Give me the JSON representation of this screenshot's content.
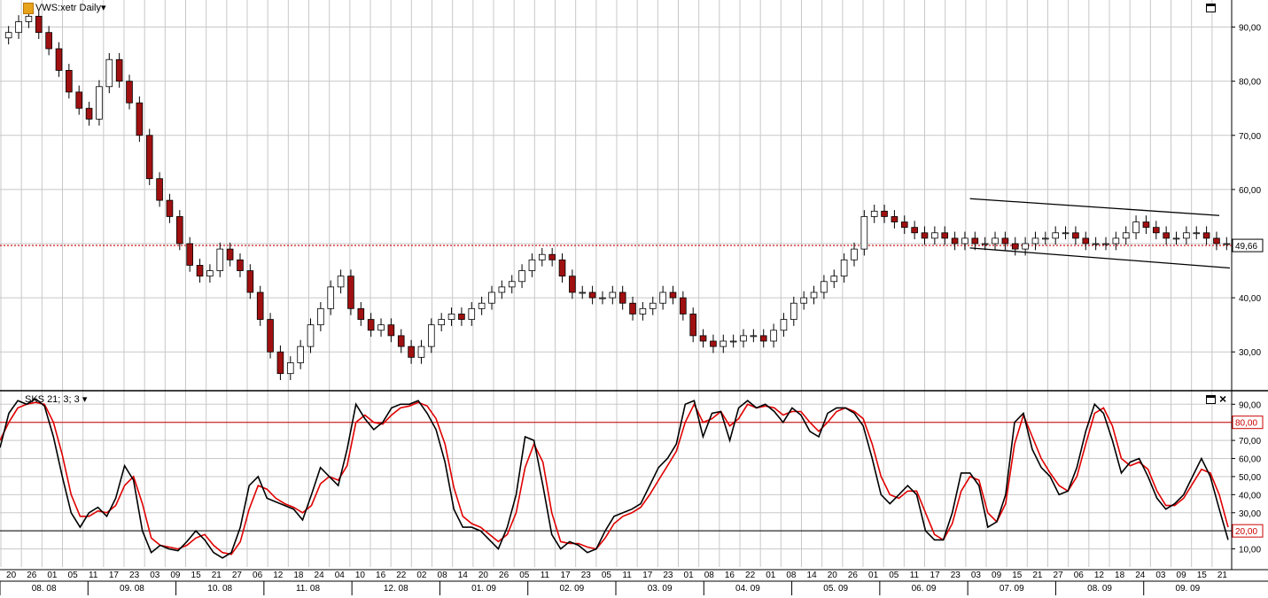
{
  "price_panel": {
    "title": "VWS:xetr Daily",
    "last_price_label": "49,66",
    "colors": {
      "up": "#ffffff",
      "down": "#a01010",
      "wick": "#000000",
      "price_line": "#cc0000",
      "grid": "#c8c8c8"
    }
  },
  "indicator_panel": {
    "title": "SKS 21; 3; 3",
    "levels": {
      "upper": "80,00",
      "lower": "20,00"
    },
    "colors": {
      "k_line": "#000000",
      "d_line": "#e00000",
      "upper_level": "#cc0000",
      "lower_level": "#000000"
    }
  },
  "time_axis": {
    "day_labels": [
      "20",
      "26",
      "01",
      "05",
      "11",
      "17",
      "23",
      "03",
      "09",
      "15",
      "21",
      "27",
      "06",
      "12",
      "18",
      "24",
      "04",
      "10",
      "16",
      "22",
      "02",
      "08",
      "14",
      "20",
      "26",
      "05",
      "11",
      "17",
      "23",
      "05",
      "11",
      "17",
      "23",
      "01",
      "08",
      "16",
      "22",
      "01",
      "08",
      "14",
      "20",
      "26",
      "01",
      "05",
      "11",
      "17",
      "23",
      "03",
      "09",
      "15",
      "21",
      "27",
      "06",
      "12",
      "18",
      "24",
      "03",
      "09",
      "15",
      "21"
    ],
    "month_labels": [
      "08. 08",
      "09. 08",
      "10. 08",
      "11. 08",
      "12. 08",
      "01. 09",
      "02. 09",
      "03. 09",
      "04. 09",
      "05. 09",
      "06. 09",
      "07. 09",
      "08. 09",
      "09. 09"
    ]
  },
  "chart_data": [
    {
      "type": "candlestick",
      "title": "VWS:xetr Daily",
      "y_ticks": [
        "90,00",
        "80,00",
        "70,00",
        "60,00",
        "50,00",
        "40,00",
        "30,00"
      ],
      "ylim": [
        23,
        95
      ],
      "grid": true,
      "last_value": 49.66,
      "series": [
        {
          "name": "close_approx",
          "values": [
            89,
            91,
            92,
            89,
            86,
            82,
            78,
            75,
            73,
            79,
            84,
            80,
            76,
            70,
            62,
            58,
            55,
            50,
            46,
            44,
            45,
            49,
            47,
            45,
            41,
            36,
            30,
            26,
            28,
            31,
            35,
            38,
            42,
            44,
            38,
            36,
            34,
            35,
            33,
            31,
            29,
            31,
            35,
            36,
            37,
            36,
            38,
            39,
            41,
            42,
            43,
            45,
            47,
            48,
            47,
            44,
            41,
            41,
            40,
            40,
            41,
            39,
            37,
            38,
            39,
            41,
            40,
            37,
            33,
            32,
            31,
            32,
            32,
            33,
            33,
            32,
            34,
            36,
            39,
            40,
            41,
            43,
            44,
            47,
            49,
            55,
            56,
            55,
            54,
            53,
            52,
            51,
            52,
            51,
            50,
            51,
            50,
            50,
            51,
            50,
            49,
            50,
            51,
            51,
            52,
            52,
            51,
            50,
            50,
            50,
            51,
            52,
            54,
            53,
            52,
            51,
            51,
            52,
            52,
            51,
            50,
            50
          ]
        }
      ]
    },
    {
      "type": "line",
      "title": "SKS 21; 3; 3",
      "y_ticks": [
        "90,00",
        "80,00",
        "70,00",
        "60,00",
        "50,00",
        "40,00",
        "30,00",
        "20,00",
        "10,00"
      ],
      "ylim": [
        0,
        97
      ],
      "reference_lines": [
        80,
        20
      ],
      "grid": true,
      "series": [
        {
          "name": "%K",
          "color": "#000000",
          "values": [
            66,
            85,
            92,
            90,
            93,
            89,
            72,
            50,
            30,
            22,
            30,
            33,
            28,
            38,
            56,
            48,
            20,
            8,
            12,
            10,
            9,
            14,
            20,
            15,
            8,
            5,
            8,
            22,
            45,
            50,
            38,
            36,
            34,
            32,
            26,
            40,
            55,
            50,
            45,
            65,
            90,
            82,
            76,
            80,
            88,
            90,
            90,
            92,
            85,
            76,
            58,
            32,
            22,
            22,
            20,
            15,
            10,
            22,
            40,
            72,
            70,
            45,
            18,
            10,
            14,
            12,
            8,
            10,
            20,
            28,
            30,
            32,
            35,
            45,
            55,
            60,
            68,
            90,
            92,
            72,
            85,
            86,
            70,
            88,
            92,
            88,
            90,
            86,
            80,
            88,
            84,
            75,
            72,
            85,
            88,
            88,
            85,
            78,
            60,
            40,
            35,
            40,
            45,
            40,
            20,
            15,
            15,
            30,
            52,
            52,
            45,
            22,
            25,
            40,
            80,
            85,
            65,
            55,
            50,
            40,
            42,
            55,
            75,
            90,
            85,
            70,
            52,
            58,
            60,
            50,
            38,
            32,
            35,
            40,
            50,
            60,
            50,
            32,
            15
          ]
        },
        {
          "name": "%D",
          "color": "#e00000",
          "values": [
            70,
            80,
            88,
            90,
            91,
            90,
            80,
            62,
            40,
            28,
            28,
            31,
            30,
            34,
            45,
            50,
            35,
            16,
            12,
            11,
            10,
            12,
            16,
            18,
            12,
            8,
            7,
            14,
            32,
            45,
            43,
            38,
            35,
            33,
            30,
            34,
            46,
            50,
            48,
            56,
            80,
            84,
            80,
            79,
            84,
            88,
            89,
            91,
            89,
            82,
            68,
            44,
            28,
            24,
            22,
            18,
            14,
            18,
            30,
            55,
            68,
            58,
            30,
            14,
            13,
            13,
            11,
            10,
            16,
            24,
            28,
            30,
            33,
            40,
            48,
            56,
            64,
            80,
            90,
            80,
            82,
            86,
            78,
            82,
            90,
            88,
            89,
            88,
            84,
            86,
            86,
            80,
            75,
            80,
            86,
            88,
            86,
            82,
            68,
            50,
            40,
            38,
            42,
            42,
            30,
            18,
            15,
            24,
            42,
            50,
            48,
            30,
            25,
            35,
            68,
            84,
            72,
            60,
            52,
            45,
            42,
            50,
            68,
            85,
            88,
            78,
            60,
            56,
            58,
            54,
            42,
            34,
            34,
            38,
            46,
            54,
            52,
            40,
            22
          ]
        }
      ]
    }
  ]
}
